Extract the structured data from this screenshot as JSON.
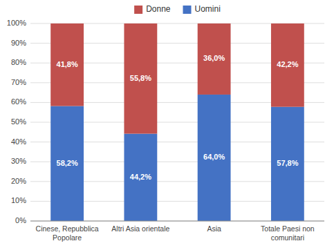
{
  "chart_data": {
    "type": "bar",
    "stacked": true,
    "categories": [
      "Cinese, Repubblica\nPopolare",
      "Altri Asia orientale",
      "Asia",
      "Totale Paesi non\ncomunitari"
    ],
    "series": [
      {
        "name": "Uomini",
        "color": "#4472C4",
        "values": [
          58.2,
          44.2,
          64.0,
          57.8
        ],
        "value_labels": [
          "58,2%",
          "44,2%",
          "64,0%",
          "57,8%"
        ]
      },
      {
        "name": "Donne",
        "color": "#C0504D",
        "values": [
          41.8,
          55.8,
          36.0,
          42.2
        ],
        "value_labels": [
          "41,8%",
          "55,8%",
          "36,0%",
          "42,2%"
        ]
      }
    ],
    "ylim": [
      0,
      100
    ],
    "yticks": [
      {
        "value": 0,
        "label": "0%"
      },
      {
        "value": 10,
        "label": "10%"
      },
      {
        "value": 20,
        "label": "20%"
      },
      {
        "value": 30,
        "label": "30%"
      },
      {
        "value": 40,
        "label": "40%"
      },
      {
        "value": 50,
        "label": "50%"
      },
      {
        "value": 60,
        "label": "60%"
      },
      {
        "value": 70,
        "label": "70%"
      },
      {
        "value": 80,
        "label": "80%"
      },
      {
        "value": 90,
        "label": "90%"
      },
      {
        "value": 100,
        "label": "100%"
      }
    ],
    "grid": true,
    "data_labels": true,
    "legend": "top"
  }
}
